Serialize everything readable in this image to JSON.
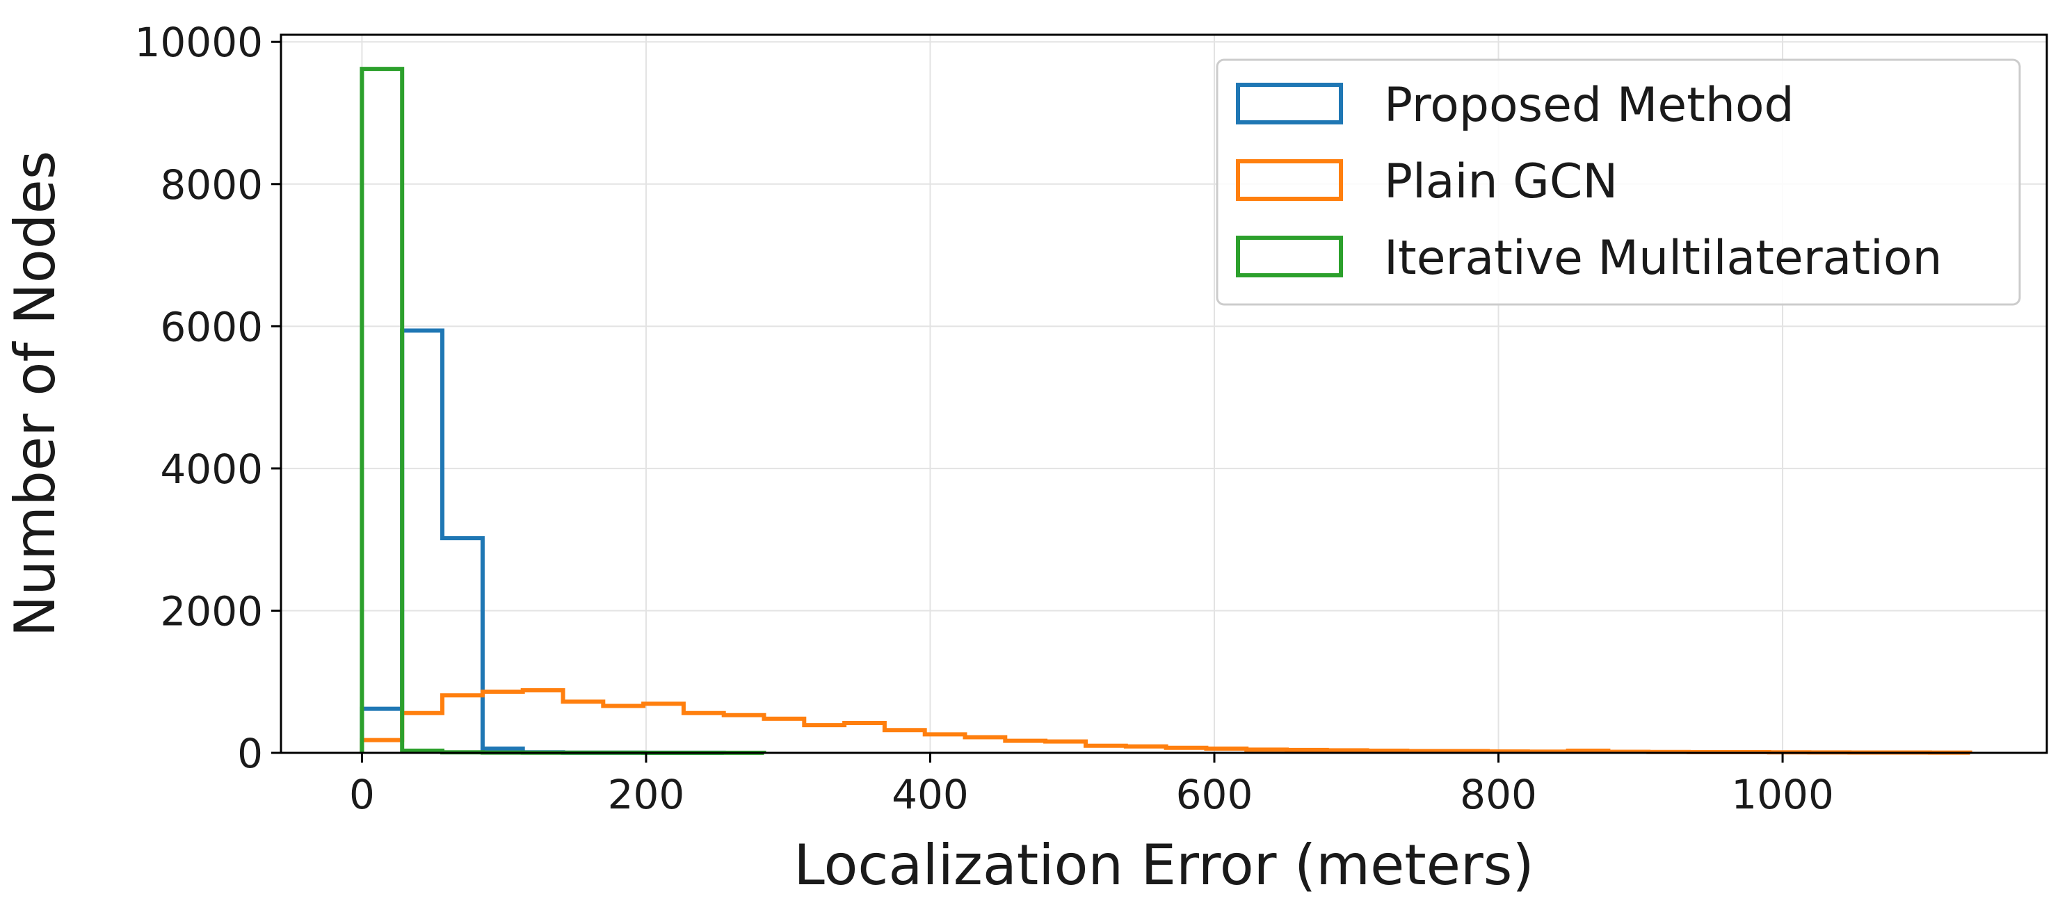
{
  "chart_data": {
    "type": "histogram",
    "title": "",
    "xlabel": "Localization Error (meters)",
    "ylabel": "Number of Nodes",
    "xlim": [
      -57,
      1186
    ],
    "ylim": [
      0,
      10100
    ],
    "xticks": [
      0,
      200,
      400,
      600,
      800,
      1000
    ],
    "yticks": [
      0,
      2000,
      4000,
      6000,
      8000,
      10000
    ],
    "grid": true,
    "legend_position": "upper-right",
    "bin_edges": [
      0,
      28.3,
      56.6,
      84.9,
      113.2,
      141.5,
      169.8,
      198.1,
      226.4,
      254.7,
      283.0,
      311.3,
      339.6,
      367.9,
      396.2,
      424.5,
      452.8,
      481.1,
      509.4,
      537.7,
      566.0,
      594.3,
      622.6,
      650.9,
      679.2,
      707.5,
      735.8,
      764.1,
      792.4,
      820.7,
      849.0,
      877.3,
      905.6,
      933.9,
      962.2,
      990.5,
      1018.8,
      1047.1,
      1075.4,
      1103.7,
      1132.0
    ],
    "series": [
      {
        "name": "Proposed Method",
        "color": "#1f77b4",
        "counts": [
          620,
          5940,
          3020,
          60,
          8,
          3,
          2,
          1,
          1,
          0,
          0,
          0,
          0,
          0,
          0,
          0,
          0,
          0,
          0,
          0,
          0,
          0,
          0,
          0,
          0,
          0,
          0,
          0,
          0,
          0,
          0,
          0,
          0,
          0,
          0,
          0,
          0,
          0,
          0,
          0
        ]
      },
      {
        "name": "Plain GCN",
        "color": "#ff7f0e",
        "counts": [
          180,
          560,
          810,
          860,
          880,
          720,
          660,
          690,
          560,
          530,
          480,
          390,
          420,
          320,
          260,
          220,
          170,
          160,
          100,
          90,
          70,
          60,
          45,
          40,
          35,
          30,
          25,
          25,
          20,
          18,
          30,
          15,
          12,
          10,
          10,
          8,
          6,
          5,
          5,
          4
        ]
      },
      {
        "name": "Iterative Multilateration",
        "color": "#2ca02c",
        "counts": [
          9620,
          30,
          8,
          4,
          3,
          2,
          2,
          1,
          1,
          1,
          0,
          0,
          0,
          0,
          0,
          0,
          0,
          0,
          0,
          0,
          0,
          0,
          0,
          0,
          0,
          0,
          0,
          0,
          0,
          0,
          0,
          0,
          0,
          0,
          0,
          0,
          0,
          0,
          0,
          0
        ]
      }
    ]
  }
}
